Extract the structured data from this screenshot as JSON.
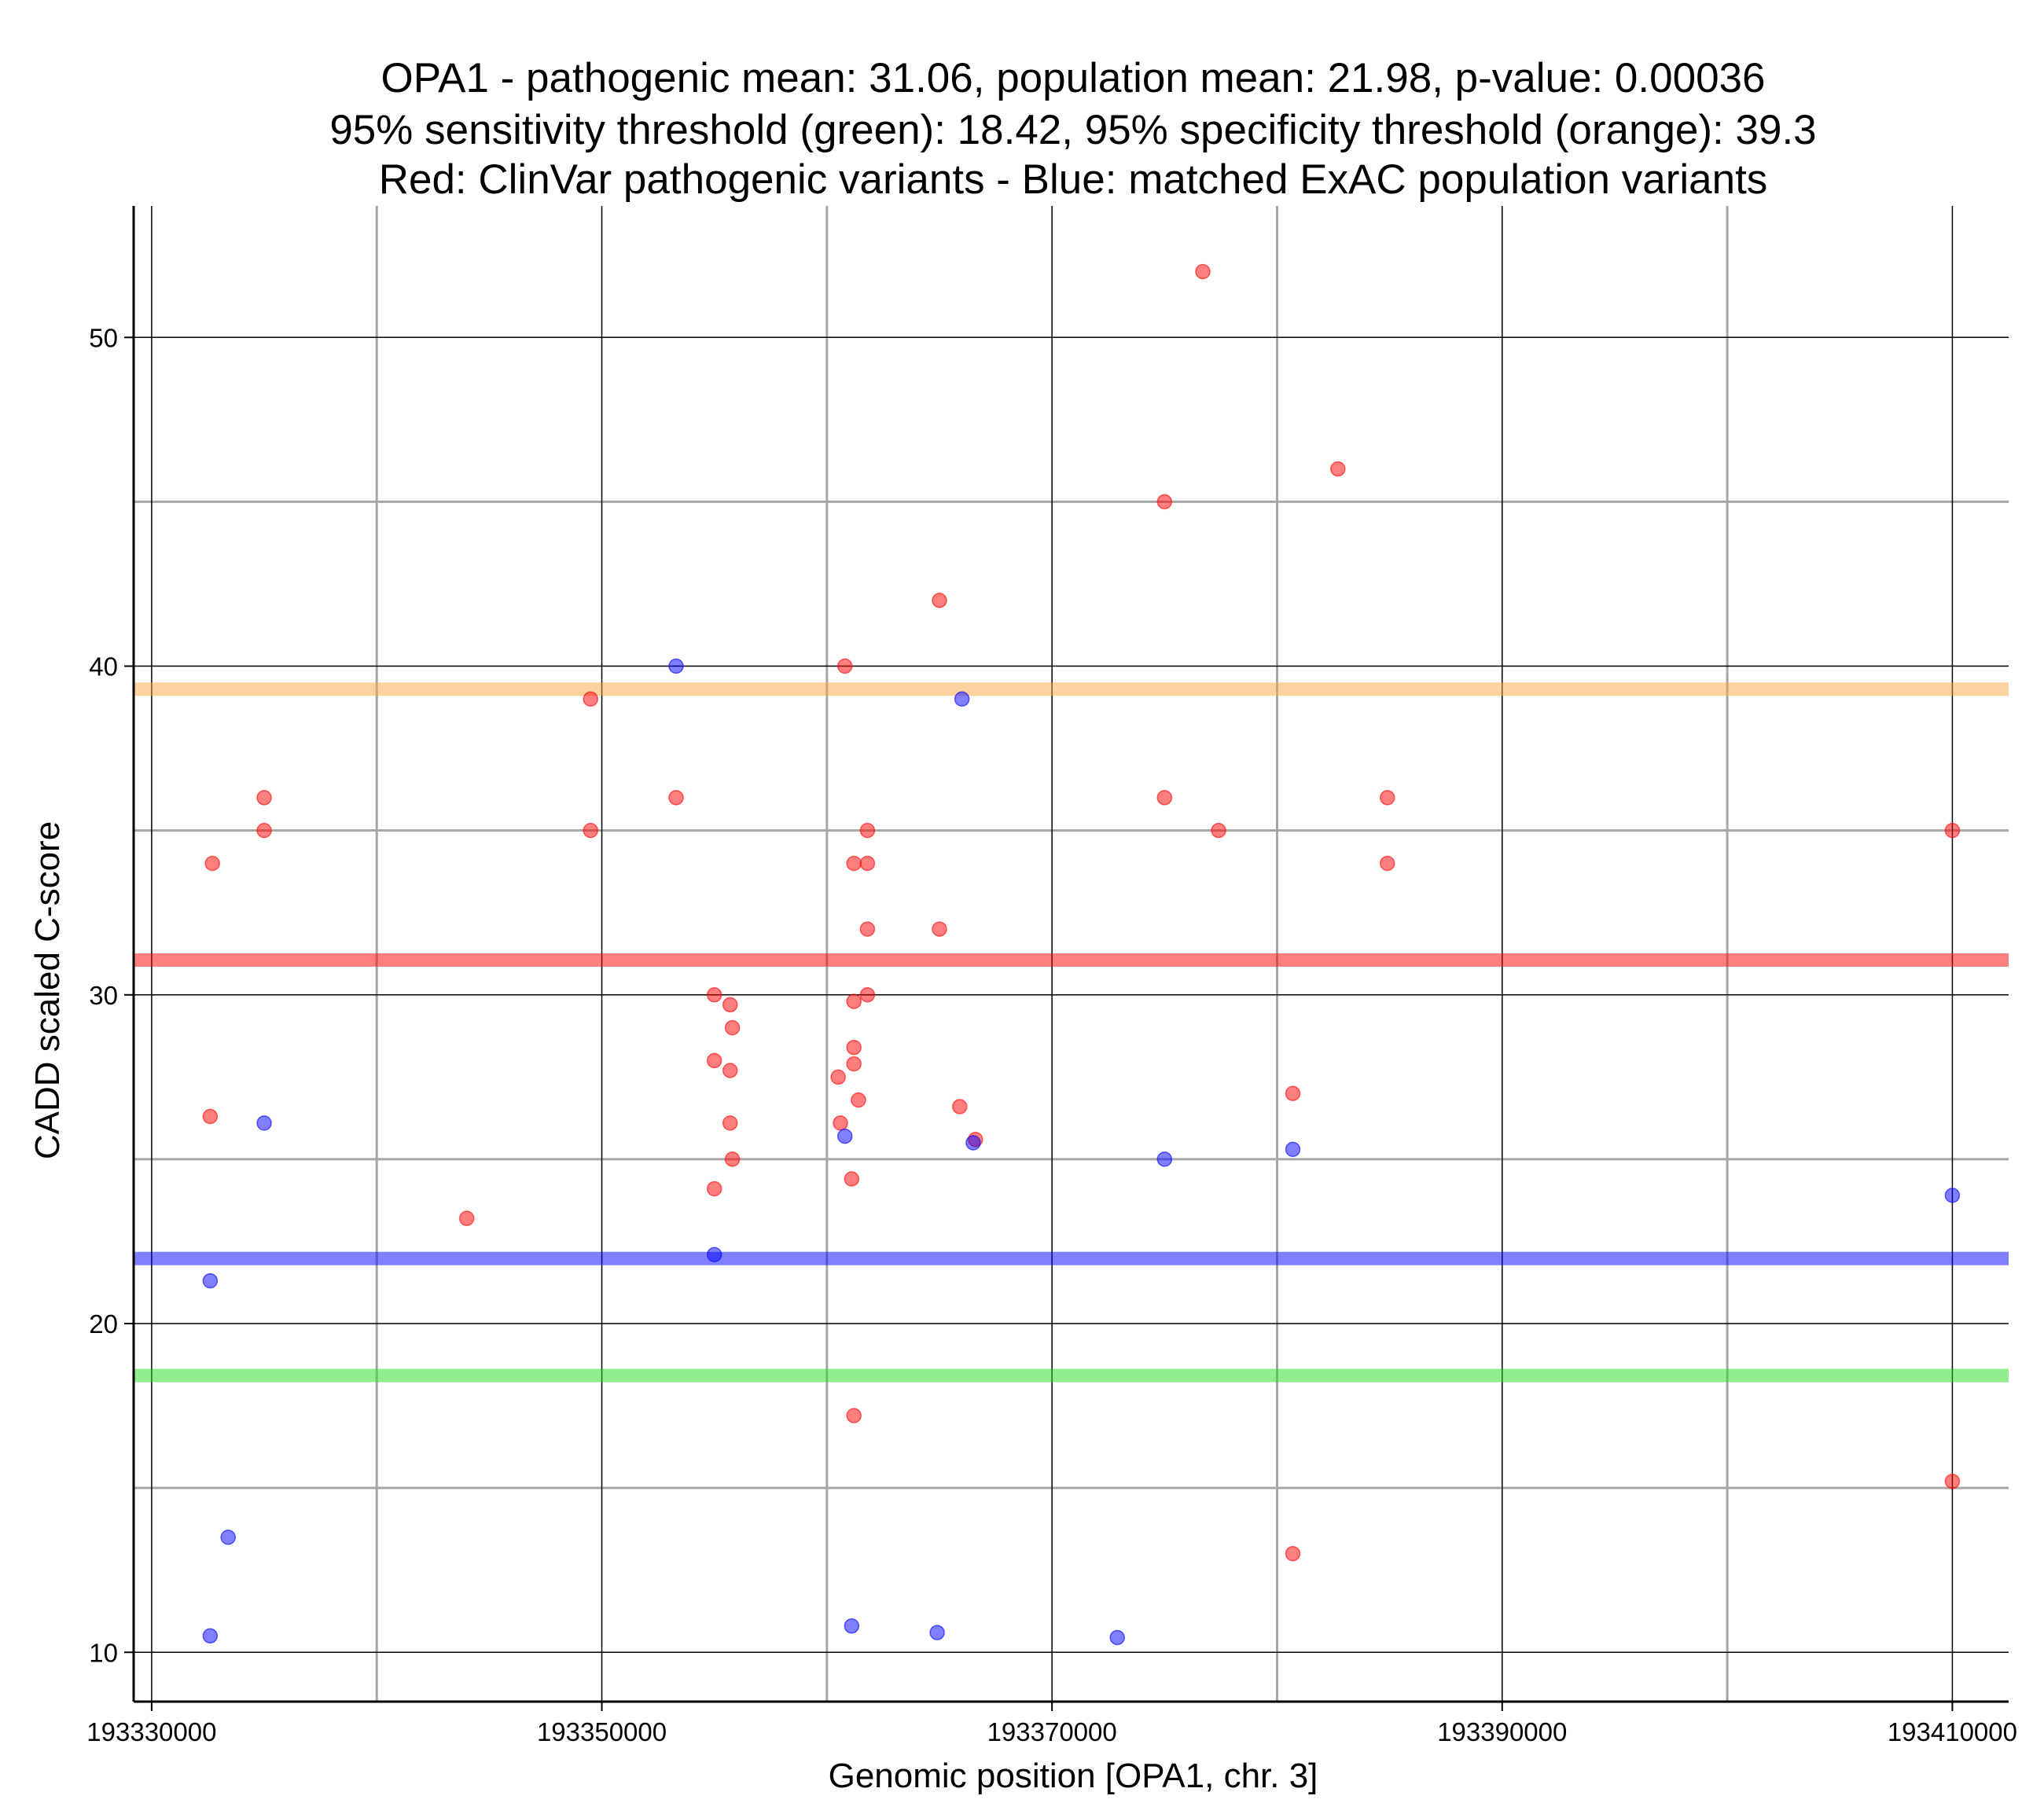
{
  "chart_data": {
    "type": "scatter",
    "title": [
      "OPA1 - pathogenic mean: 31.06, population mean: 21.98, p-value: 0.00036",
      "95% sensitivity threshold (green): 18.42, 95% specificity threshold (orange): 39.3",
      "Red: ClinVar pathogenic variants - Blue: matched ExAC population variants"
    ],
    "xlabel": "Genomic position [OPA1, chr. 3]",
    "ylabel": "CADD scaled C-score",
    "xlim": [
      193329200,
      193412500
    ],
    "ylim": [
      8.5,
      54.0
    ],
    "x_ticks": [
      193330000,
      193350000,
      193370000,
      193390000,
      193410000
    ],
    "x_tick_labels": [
      "193330000",
      "193350000",
      "193370000",
      "193390000",
      "193410000"
    ],
    "y_ticks": [
      10,
      20,
      30,
      40,
      50
    ],
    "y_tick_labels": [
      "10",
      "20",
      "30",
      "40",
      "50"
    ],
    "x_minor_grid": [
      193340000,
      193360000,
      193380000,
      193400000
    ],
    "y_minor_grid": [
      15,
      25,
      35,
      45
    ],
    "thresholds": [
      {
        "name": "specificity",
        "value": 39.3,
        "color": "#f9a53f"
      },
      {
        "name": "pathogenic mean",
        "value": 31.06,
        "color": "#ff0000"
      },
      {
        "name": "population mean",
        "value": 21.98,
        "color": "#0000ff"
      },
      {
        "name": "sensitivity",
        "value": 18.42,
        "color": "#1fe01f"
      }
    ],
    "series": [
      {
        "name": "ClinVar pathogenic variants",
        "color": "#ff0000",
        "points": [
          [
            193376700,
            52.0
          ],
          [
            193382700,
            46.0
          ],
          [
            193375000,
            45.0
          ],
          [
            193365000,
            42.0
          ],
          [
            193360800,
            40.0
          ],
          [
            193349500,
            39.0
          ],
          [
            193335000,
            36.0
          ],
          [
            193335000,
            35.0
          ],
          [
            193332700,
            34.0
          ],
          [
            193349500,
            35.0
          ],
          [
            193353300,
            36.0
          ],
          [
            193361800,
            35.0
          ],
          [
            193361200,
            34.0
          ],
          [
            193361800,
            34.0
          ],
          [
            193361800,
            32.0
          ],
          [
            193365000,
            32.0
          ],
          [
            193375000,
            36.0
          ],
          [
            193377400,
            35.0
          ],
          [
            193384900,
            36.0
          ],
          [
            193384900,
            34.0
          ],
          [
            193410000,
            35.0
          ],
          [
            193355000,
            30.0
          ],
          [
            193355700,
            29.7
          ],
          [
            193355800,
            29.0
          ],
          [
            193355000,
            28.0
          ],
          [
            193355700,
            27.7
          ],
          [
            193361200,
            29.8
          ],
          [
            193361800,
            30.0
          ],
          [
            193361200,
            28.4
          ],
          [
            193361200,
            27.9
          ],
          [
            193360500,
            27.5
          ],
          [
            193361400,
            26.8
          ],
          [
            193360600,
            26.1
          ],
          [
            193365900,
            26.6
          ],
          [
            193366600,
            25.6
          ],
          [
            193355700,
            26.1
          ],
          [
            193355800,
            25.0
          ],
          [
            193355000,
            24.1
          ],
          [
            193361100,
            24.4
          ],
          [
            193332600,
            26.3
          ],
          [
            193344000,
            23.2
          ],
          [
            193380700,
            27.0
          ],
          [
            193361200,
            17.2
          ],
          [
            193410000,
            15.2
          ],
          [
            193380700,
            13.0
          ]
        ]
      },
      {
        "name": "matched ExAC population variants",
        "color": "#0000ff",
        "points": [
          [
            193353300,
            40.0
          ],
          [
            193366000,
            39.0
          ],
          [
            193335000,
            26.1
          ],
          [
            193360800,
            25.7
          ],
          [
            193366500,
            25.5
          ],
          [
            193375000,
            25.0
          ],
          [
            193380700,
            25.3
          ],
          [
            193410000,
            23.9
          ],
          [
            193355000,
            22.1
          ],
          [
            193332600,
            21.3
          ],
          [
            193333400,
            13.5
          ],
          [
            193332600,
            10.5
          ],
          [
            193361100,
            10.8
          ],
          [
            193364900,
            10.6
          ],
          [
            193372900,
            10.45
          ]
        ]
      }
    ]
  }
}
